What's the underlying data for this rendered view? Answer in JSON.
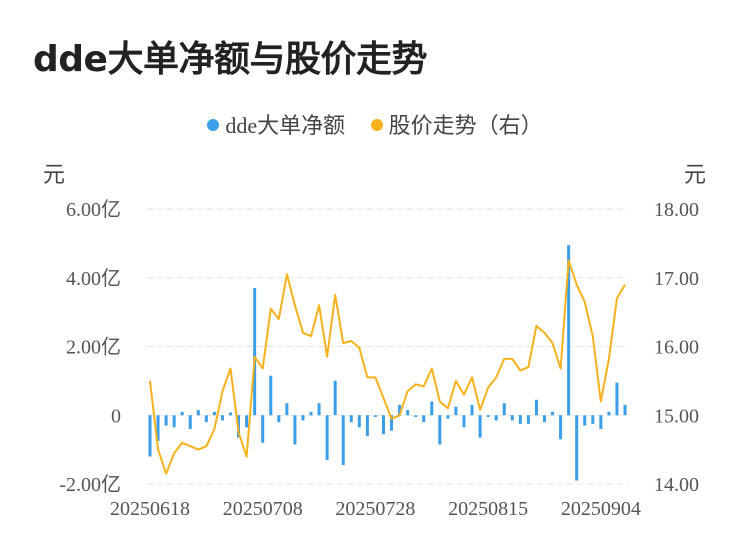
{
  "chart_data": {
    "type": "bar+line",
    "title": "dde大单净额与股价走势",
    "legend": [
      {
        "label": "dde大单净额",
        "color": "#3a9ee8"
      },
      {
        "label": "股价走势（右）",
        "color": "#f5b21c"
      }
    ],
    "y_left": {
      "unit": "元",
      "ticks": [
        "6.00亿",
        "4.00亿",
        "2.00亿",
        "0",
        "-2.00亿"
      ],
      "ylim": [
        -2,
        6
      ]
    },
    "y_right": {
      "unit": "元",
      "ticks": [
        "18.00",
        "17.00",
        "16.00",
        "15.00",
        "14.00"
      ],
      "ylim": [
        14,
        18
      ]
    },
    "x_tick_labels": [
      "20250618",
      "20250708",
      "20250728",
      "20250815",
      "20250904"
    ],
    "x_tick_index": [
      0,
      14,
      28,
      42,
      56
    ],
    "grid": "horizontal dashed",
    "series": [
      {
        "name": "dde大单净额",
        "kind": "bar",
        "axis": "left",
        "values": [
          -1.2,
          -0.75,
          -0.3,
          -0.35,
          0.1,
          -0.4,
          0.15,
          -0.2,
          0.1,
          -0.15,
          0.08,
          -0.65,
          -0.35,
          3.7,
          -0.8,
          1.15,
          -0.2,
          0.35,
          -0.85,
          -0.15,
          0.1,
          0.35,
          -1.3,
          1.0,
          -1.45,
          -0.2,
          -0.35,
          -0.6,
          -0.05,
          -0.55,
          -0.45,
          0.3,
          0.15,
          -0.05,
          -0.2,
          0.4,
          -0.85,
          -0.1,
          0.25,
          -0.35,
          0.3,
          -0.65,
          -0.05,
          -0.15,
          0.35,
          -0.15,
          -0.25,
          -0.25,
          0.45,
          -0.2,
          0.1,
          -0.7,
          4.95,
          -1.9,
          -0.3,
          -0.25,
          -0.4,
          0.1,
          0.95,
          0.3
        ]
      },
      {
        "name": "股价走势（右）",
        "kind": "line",
        "axis": "right",
        "values": [
          15.5,
          14.5,
          14.15,
          14.45,
          14.6,
          14.55,
          14.5,
          14.55,
          14.8,
          15.35,
          15.68,
          14.75,
          14.4,
          15.85,
          15.68,
          16.55,
          16.4,
          17.05,
          16.6,
          16.2,
          16.15,
          16.6,
          15.85,
          16.75,
          16.05,
          16.08,
          15.98,
          15.55,
          15.55,
          15.25,
          14.95,
          15.0,
          15.35,
          15.45,
          15.42,
          15.68,
          15.2,
          15.1,
          15.5,
          15.3,
          15.55,
          15.08,
          15.4,
          15.55,
          15.82,
          15.82,
          15.65,
          15.7,
          16.3,
          16.2,
          16.05,
          15.68,
          17.25,
          16.9,
          16.65,
          16.15,
          15.2,
          15.82,
          16.7,
          16.9
        ]
      }
    ]
  }
}
